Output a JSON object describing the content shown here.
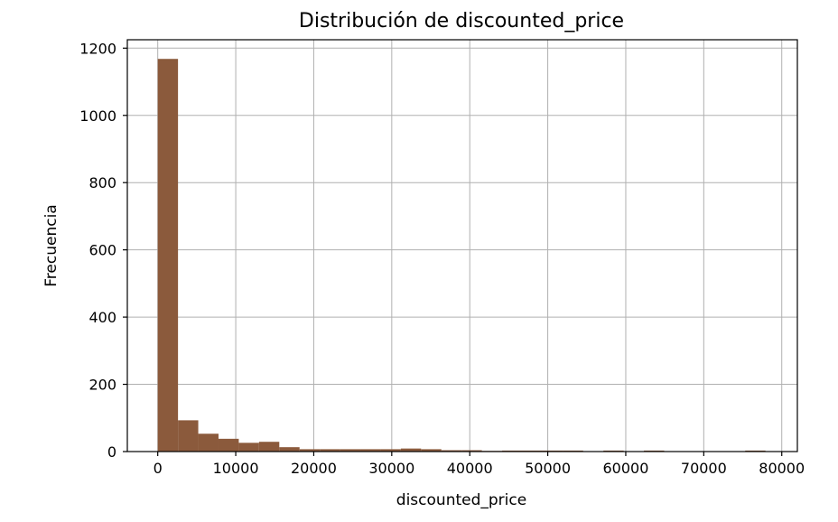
{
  "chart_data": {
    "type": "bar",
    "title": "Distribución de discounted_price",
    "xlabel": "discounted_price",
    "ylabel": "Frecuencia",
    "bar_color": "#8b5a3c",
    "grid": true,
    "xlim": [
      -3900,
      82000
    ],
    "ylim": [
      0,
      1225
    ],
    "x_ticks": [
      0,
      10000,
      20000,
      30000,
      40000,
      50000,
      60000,
      70000,
      80000
    ],
    "y_ticks": [
      0,
      200,
      400,
      600,
      800,
      1000,
      1200
    ],
    "bins": {
      "start": 0,
      "width": 2597,
      "counts": [
        1168,
        93,
        53,
        38,
        26,
        29,
        13,
        7,
        7,
        7,
        7,
        7,
        9,
        7,
        4,
        4,
        2,
        3,
        3,
        3,
        3,
        1,
        3,
        1,
        3,
        1,
        1,
        1,
        1,
        3
      ]
    }
  }
}
